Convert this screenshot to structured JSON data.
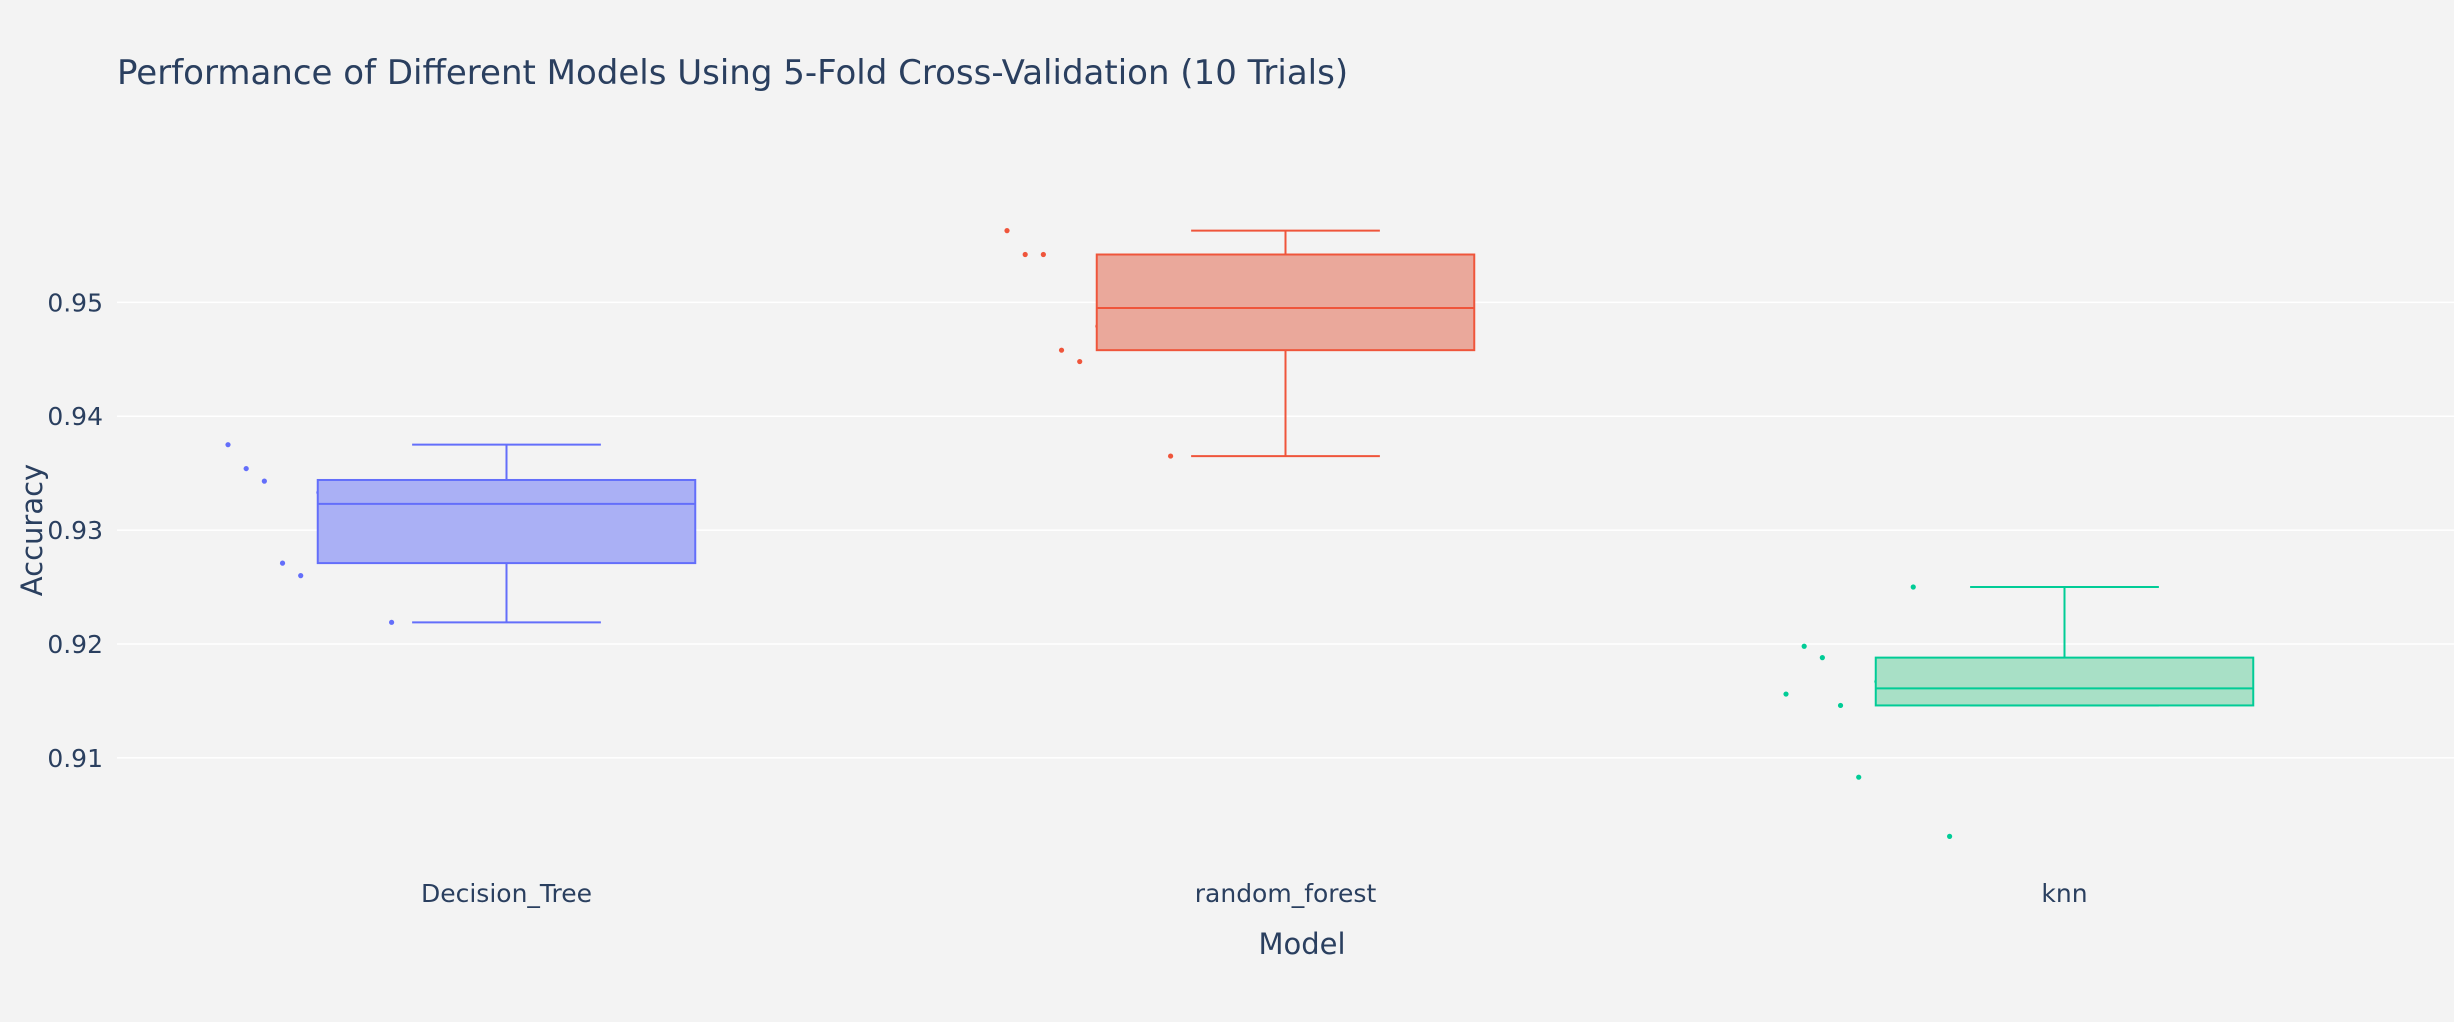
{
  "chart_data": {
    "type": "box",
    "title": "Performance of Different Models Using 5-Fold Cross-Validation (10 Trials)",
    "xlabel": "Model",
    "ylabel": "Accuracy",
    "ylim": [
      0.9005,
      0.9625
    ],
    "yticks": [
      0.91,
      0.92,
      0.93,
      0.94,
      0.95
    ],
    "ytick_labels": [
      "0.91",
      "0.92",
      "0.93",
      "0.94",
      "0.95"
    ],
    "grid": true,
    "categories": [
      "Decision_Tree",
      "random_forest",
      "knn"
    ],
    "series": [
      {
        "category": "Decision_Tree",
        "color": "#636efa",
        "fill": "#aab0f5",
        "values": [
          0.9375,
          0.9302,
          0.926,
          0.9354,
          0.9312,
          0.9333,
          0.9343,
          0.9219,
          0.9333,
          0.9271
        ],
        "box": {
          "lower_fence": 0.9219,
          "q1": 0.9271,
          "median": 0.9323,
          "q3": 0.9344,
          "upper_fence": 0.9375
        }
      },
      {
        "category": "random_forest",
        "color": "#ef553b",
        "fill": "#eaa89b",
        "values": [
          0.9563,
          0.9479,
          0.9448,
          0.9542,
          0.9531,
          0.9479,
          0.9542,
          0.9365,
          0.951,
          0.9458
        ],
        "box": {
          "lower_fence": 0.9365,
          "q1": 0.9458,
          "median": 0.9495,
          "q3": 0.9542,
          "upper_fence": 0.9563
        }
      },
      {
        "category": "knn",
        "color": "#00cc96",
        "fill": "#a8e0c6",
        "values": [
          0.9156,
          0.925,
          0.9083,
          0.9198,
          0.9156,
          0.9167,
          0.9188,
          0.9031,
          0.9167,
          0.9146
        ],
        "box": {
          "lower_fence": 0.9146,
          "q1": 0.9146,
          "median": 0.9161,
          "q3": 0.9188,
          "upper_fence": 0.925
        }
      }
    ]
  }
}
